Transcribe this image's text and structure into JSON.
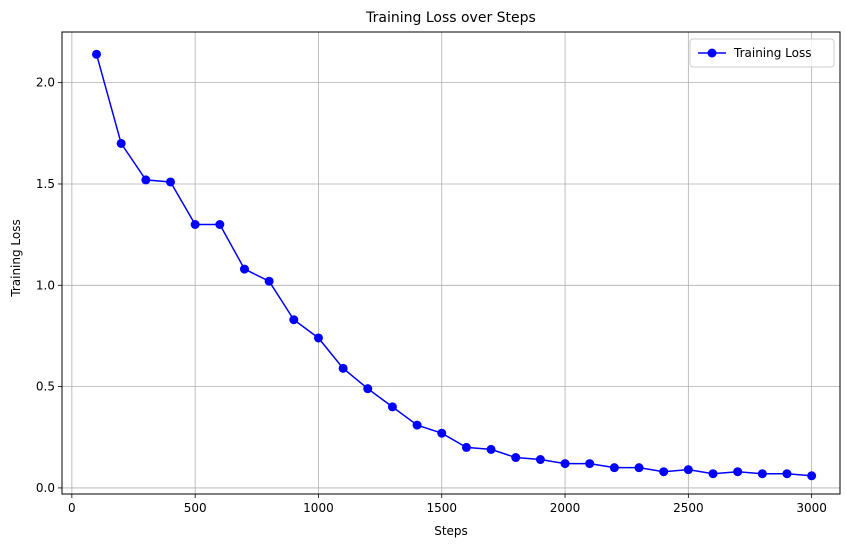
{
  "chart_data": {
    "type": "line",
    "title": "Training Loss over Steps",
    "xlabel": "Steps",
    "ylabel": "Training Loss",
    "xlim": [
      -40,
      3115
    ],
    "ylim": [
      -0.03,
      2.25
    ],
    "xticks": [
      0,
      500,
      1000,
      1500,
      2000,
      2500,
      3000
    ],
    "yticks": [
      0.0,
      0.5,
      1.0,
      1.5,
      2.0
    ],
    "xtick_labels": [
      "0",
      "500",
      "1000",
      "1500",
      "2000",
      "2500",
      "3000"
    ],
    "ytick_labels": [
      "0.0",
      "0.5",
      "1.0",
      "1.5",
      "2.0"
    ],
    "grid": true,
    "legend": "top-right",
    "series": [
      {
        "name": "Training Loss",
        "color": "#0000ff",
        "marker": "circle",
        "x": [
          100,
          200,
          300,
          400,
          500,
          600,
          700,
          800,
          900,
          1000,
          1100,
          1200,
          1300,
          1400,
          1500,
          1600,
          1700,
          1800,
          1900,
          2000,
          2100,
          2200,
          2300,
          2400,
          2500,
          2600,
          2700,
          2800,
          2900,
          3000
        ],
        "y": [
          2.14,
          1.7,
          1.52,
          1.51,
          1.3,
          1.3,
          1.08,
          1.02,
          0.83,
          0.74,
          0.59,
          0.49,
          0.4,
          0.31,
          0.27,
          0.2,
          0.19,
          0.15,
          0.14,
          0.12,
          0.12,
          0.1,
          0.1,
          0.08,
          0.09,
          0.07,
          0.08,
          0.07,
          0.07,
          0.06
        ]
      }
    ]
  }
}
